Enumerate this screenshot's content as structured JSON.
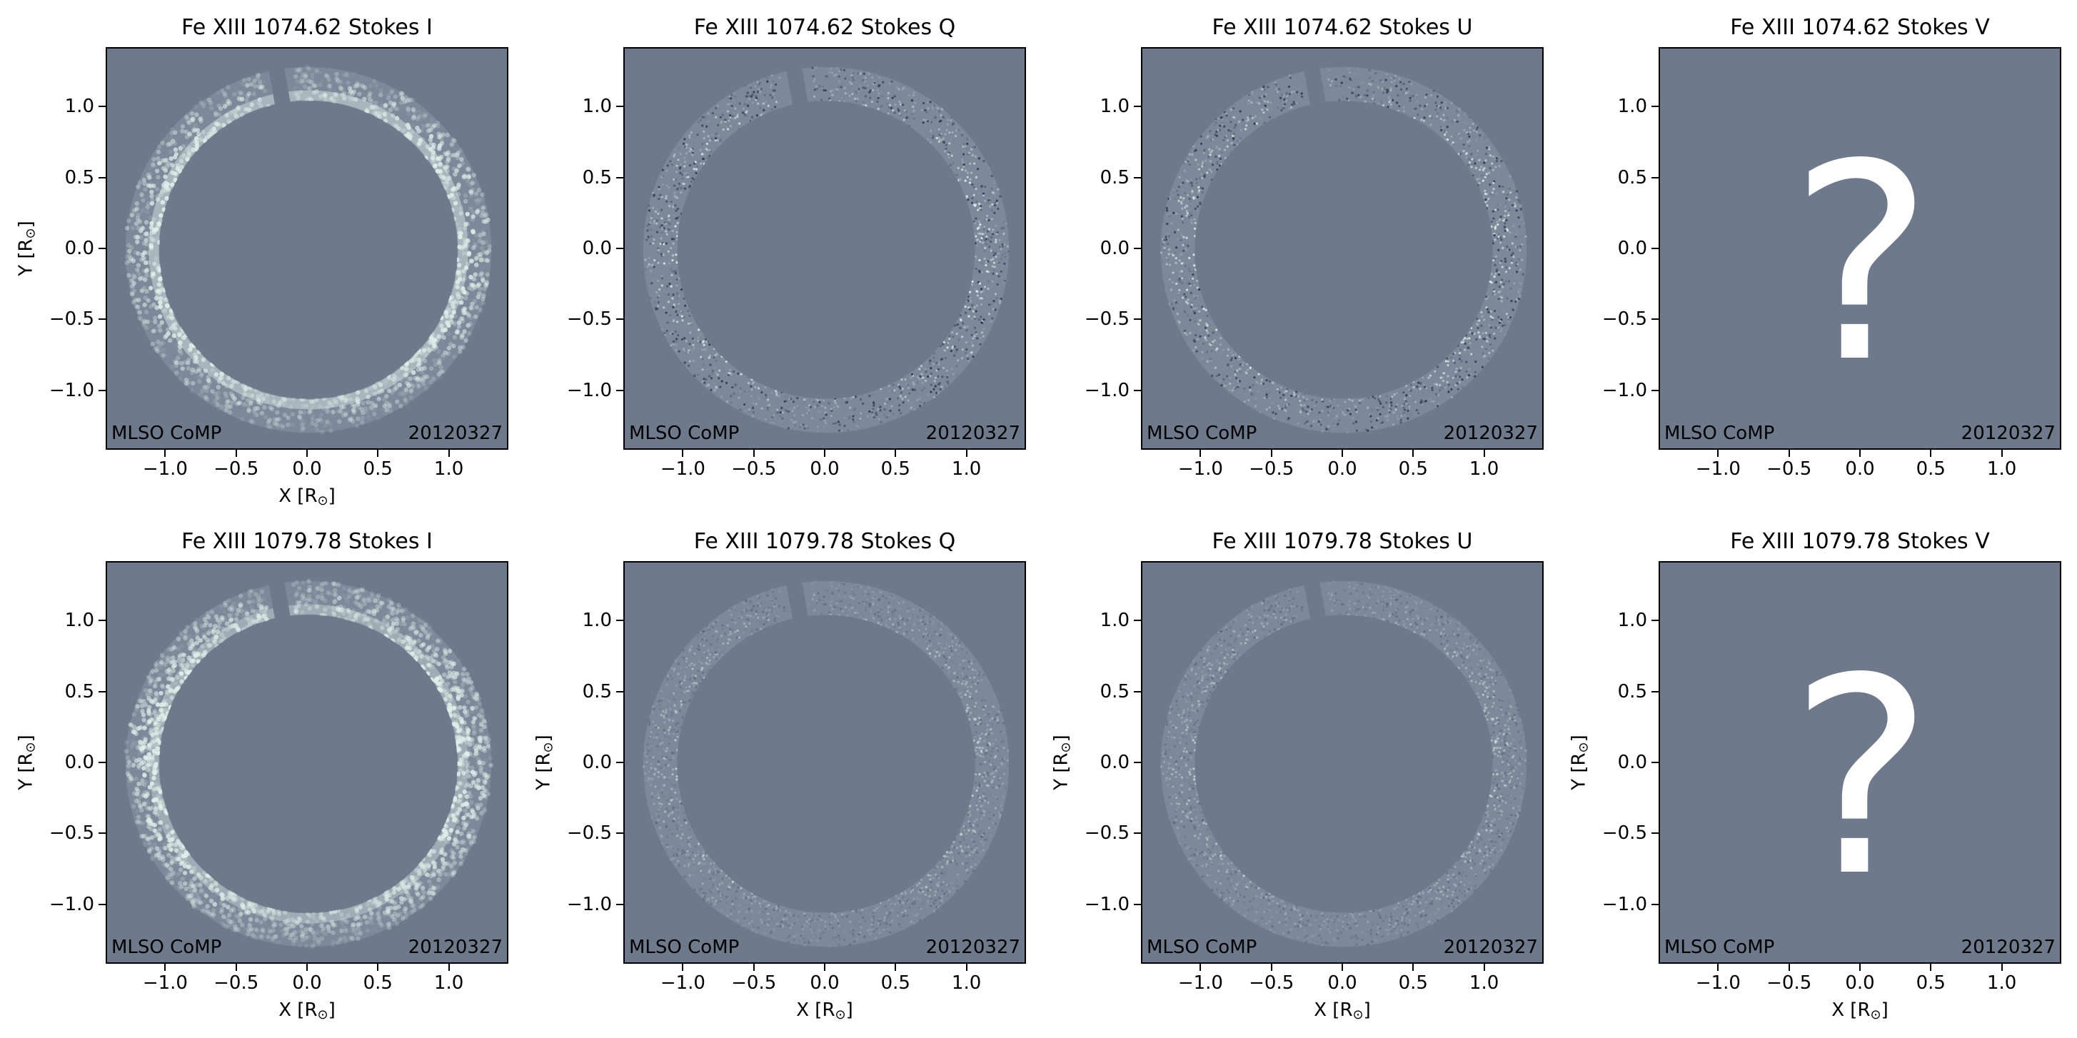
{
  "chart_data": [
    {
      "type": "heatmap",
      "title": "Fe XIII 1074.62 Stokes I",
      "xlabel": "X  [R",
      "ylabel": "Y  [R",
      "xlim": [
        -1.42,
        1.42
      ],
      "ylim": [
        -1.42,
        1.42
      ],
      "xticks": [
        "−1.0",
        "−0.5",
        "0.0",
        "0.5",
        "1.0"
      ],
      "yticks": [
        "1.0",
        "0.5",
        "0.0",
        "−0.5",
        "−1.0"
      ],
      "annotation_left": "MLSO CoMP",
      "annotation_right": "20120327",
      "ring": {
        "inner_radius": 1.05,
        "outer_radius": 1.29
      }
    },
    {
      "type": "heatmap",
      "title": "Fe XIII 1074.62 Stokes Q",
      "xlabel": "",
      "ylabel": "",
      "xlim": [
        -1.42,
        1.42
      ],
      "ylim": [
        -1.42,
        1.42
      ],
      "xticks": [
        "−1.0",
        "−0.5",
        "0.0",
        "0.5",
        "1.0"
      ],
      "yticks": [
        "1.0",
        "0.5",
        "0.0",
        "−0.5",
        "−1.0"
      ],
      "annotation_left": "MLSO CoMP",
      "annotation_right": "20120327",
      "ring": {
        "inner_radius": 1.05,
        "outer_radius": 1.29
      }
    },
    {
      "type": "heatmap",
      "title": "Fe XIII 1074.62 Stokes U",
      "xlabel": "",
      "ylabel": "",
      "xlim": [
        -1.42,
        1.42
      ],
      "ylim": [
        -1.42,
        1.42
      ],
      "xticks": [
        "−1.0",
        "−0.5",
        "0.0",
        "0.5",
        "1.0"
      ],
      "yticks": [
        "1.0",
        "0.5",
        "0.0",
        "−0.5",
        "−1.0"
      ],
      "annotation_left": "MLSO CoMP",
      "annotation_right": "20120327",
      "ring": {
        "inner_radius": 1.05,
        "outer_radius": 1.29
      }
    },
    {
      "type": "heatmap",
      "title": "Fe XIII 1074.62 Stokes V",
      "xlabel": "",
      "ylabel": "",
      "xlim": [
        -1.42,
        1.42
      ],
      "ylim": [
        -1.42,
        1.42
      ],
      "xticks": [
        "−1.0",
        "−0.5",
        "0.0",
        "0.5",
        "1.0"
      ],
      "yticks": [
        "1.0",
        "0.5",
        "0.0",
        "−0.5",
        "−1.0"
      ],
      "annotation_left": "MLSO CoMP",
      "annotation_right": "20120327",
      "placeholder": "?"
    },
    {
      "type": "heatmap",
      "title": "Fe XIII 1079.78 Stokes I",
      "xlabel": "X  [R",
      "ylabel": "Y  [R",
      "xlim": [
        -1.42,
        1.42
      ],
      "ylim": [
        -1.42,
        1.42
      ],
      "xticks": [
        "−1.0",
        "−0.5",
        "0.0",
        "0.5",
        "1.0"
      ],
      "yticks": [
        "1.0",
        "0.5",
        "0.0",
        "−0.5",
        "−1.0"
      ],
      "annotation_left": "MLSO CoMP",
      "annotation_right": "20120327",
      "ring": {
        "inner_radius": 1.05,
        "outer_radius": 1.29
      }
    },
    {
      "type": "heatmap",
      "title": "Fe XIII 1079.78 Stokes Q",
      "xlabel": "X  [R",
      "ylabel": "Y  [R",
      "xlim": [
        -1.42,
        1.42
      ],
      "ylim": [
        -1.42,
        1.42
      ],
      "xticks": [
        "−1.0",
        "−0.5",
        "0.0",
        "0.5",
        "1.0"
      ],
      "yticks": [
        "1.0",
        "0.5",
        "0.0",
        "−0.5",
        "−1.0"
      ],
      "annotation_left": "MLSO CoMP",
      "annotation_right": "20120327",
      "ring": {
        "inner_radius": 1.05,
        "outer_radius": 1.29
      }
    },
    {
      "type": "heatmap",
      "title": "Fe XIII 1079.78 Stokes U",
      "xlabel": "X  [R",
      "ylabel": "Y  [R",
      "xlim": [
        -1.42,
        1.42
      ],
      "ylim": [
        -1.42,
        1.42
      ],
      "xticks": [
        "−1.0",
        "−0.5",
        "0.0",
        "0.5",
        "1.0"
      ],
      "yticks": [
        "1.0",
        "0.5",
        "0.0",
        "−0.5",
        "−1.0"
      ],
      "annotation_left": "MLSO CoMP",
      "annotation_right": "20120327",
      "ring": {
        "inner_radius": 1.05,
        "outer_radius": 1.29
      }
    },
    {
      "type": "heatmap",
      "title": "Fe XIII 1079.78 Stokes V",
      "xlabel": "X  [R",
      "ylabel": "Y  [R",
      "xlim": [
        -1.42,
        1.42
      ],
      "ylim": [
        -1.42,
        1.42
      ],
      "xticks": [
        "−1.0",
        "−0.5",
        "0.0",
        "0.5",
        "1.0"
      ],
      "yticks": [
        "1.0",
        "0.5",
        "0.0",
        "−0.5",
        "−1.0"
      ],
      "annotation_left": "MLSO CoMP",
      "annotation_right": "20120327",
      "placeholder": "?"
    }
  ],
  "axis_unit_suffix": "]",
  "colors": {
    "background": "#6e798c",
    "ring_light": "#dfeee9",
    "ring_dark": "#2f3350",
    "text_on_plot": "#000000",
    "placeholder": "#ffffff"
  }
}
